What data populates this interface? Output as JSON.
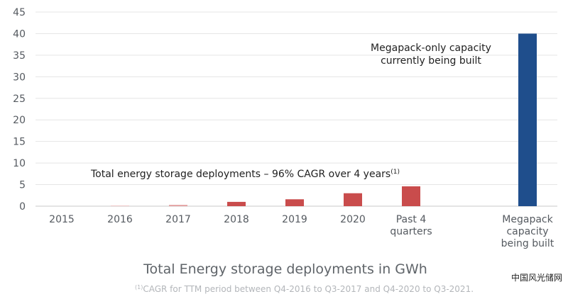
{
  "chart_data": {
    "type": "bar",
    "categories": [
      "2015",
      "2016",
      "2017",
      "2018",
      "2019",
      "2020",
      "Past 4 quarters",
      "Megapack capacity being built"
    ],
    "category_lines": [
      [
        "2015"
      ],
      [
        "2016"
      ],
      [
        "2017"
      ],
      [
        "2018"
      ],
      [
        "2019"
      ],
      [
        "2020"
      ],
      [
        "Past 4",
        "quarters"
      ],
      [
        "Megapack",
        "capacity",
        "being built"
      ]
    ],
    "values": [
      0.0,
      0.1,
      0.3,
      1.0,
      1.6,
      3.0,
      4.6,
      40
    ],
    "colors": [
      "#c94c4c",
      "#f0c9c9",
      "#e3a0a0",
      "#c94c4c",
      "#c94c4c",
      "#c94c4c",
      "#c94c4c",
      "#1f4e8c"
    ],
    "ylim": [
      0,
      45
    ],
    "yticks": [
      0,
      5,
      10,
      15,
      20,
      25,
      30,
      35,
      40,
      45
    ],
    "grid": true,
    "title": "Total Energy storage deployments in GWh",
    "annotations": {
      "megapack_line1": "Megapack-only capacity",
      "megapack_line2": "currently being built",
      "cagr_text": "Total energy storage deployments – 96% CAGR over 4 years",
      "cagr_sup": "(1)"
    },
    "footnote_sup": "(1)",
    "footnote": "CAGR for TTM period between Q4-2016 to Q3-2017 and Q4-2020 to Q3-2021."
  },
  "watermark": "中国风光储网",
  "colors": {
    "grid": "#e5e5e5",
    "axis": "#c8c8c8"
  }
}
